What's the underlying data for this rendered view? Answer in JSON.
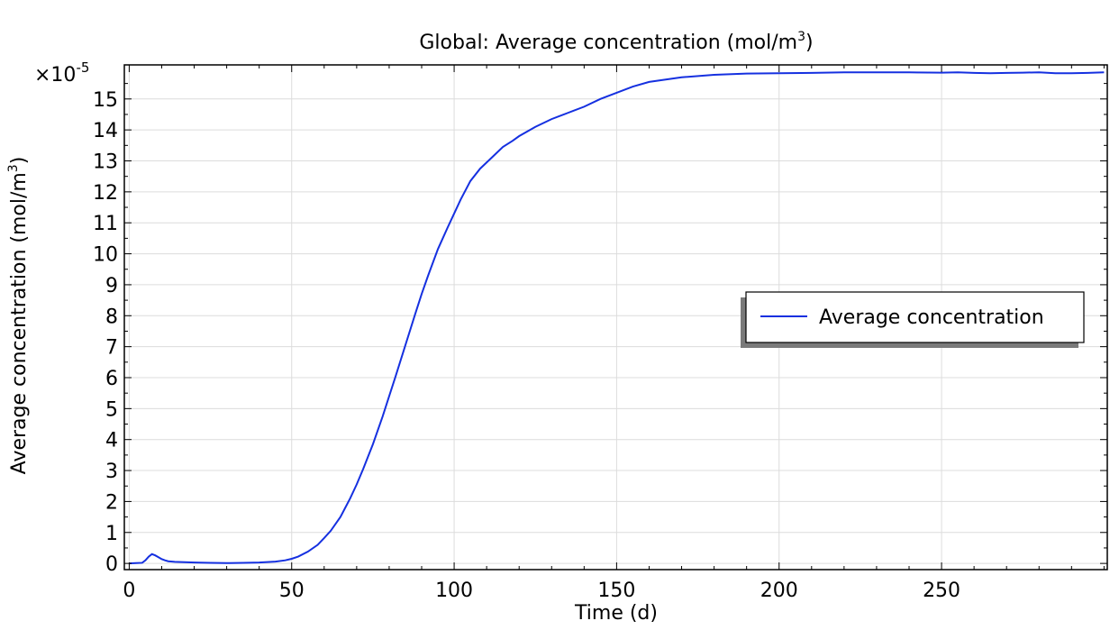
{
  "chart_data": {
    "type": "line",
    "title": "Global: Average concentration (mol/m",
    "title_sup": "3",
    "title_suffix": ")",
    "xlabel": "Time (d)",
    "ylabel": "Average concentration (mol/m",
    "ylabel_sup": "3",
    "ylabel_suffix": ")",
    "y_multiplier": "×10",
    "y_multiplier_exp": "-5",
    "xlim": [
      -1.5,
      301
    ],
    "ylim": [
      -0.2,
      16.1
    ],
    "x_ticks": [
      0,
      50,
      100,
      150,
      200,
      250
    ],
    "y_ticks": [
      0,
      1,
      2,
      3,
      4,
      5,
      6,
      7,
      8,
      9,
      10,
      11,
      12,
      13,
      14,
      15
    ],
    "grid": true,
    "legend": {
      "position": "right-center"
    },
    "series": [
      {
        "name": "Average concentration",
        "color": "#1530e0",
        "x": [
          0,
          2,
          4,
          5,
          6,
          7,
          8,
          9,
          10,
          11,
          12,
          14,
          17,
          20,
          25,
          30,
          35,
          40,
          45,
          48,
          50,
          52,
          55,
          58,
          60,
          62,
          65,
          68,
          70,
          72,
          75,
          78,
          80,
          82,
          85,
          88,
          90,
          92,
          95,
          98,
          100,
          102,
          105,
          108,
          110,
          112,
          115,
          118,
          120,
          125,
          130,
          135,
          140,
          145,
          150,
          155,
          160,
          170,
          180,
          190,
          200,
          210,
          220,
          230,
          240,
          250,
          255,
          260,
          265,
          270,
          275,
          280,
          285,
          290,
          295,
          300
        ],
        "values": [
          0,
          0.01,
          0.02,
          0.1,
          0.22,
          0.3,
          0.26,
          0.2,
          0.14,
          0.1,
          0.07,
          0.05,
          0.04,
          0.03,
          0.02,
          0.01,
          0.02,
          0.03,
          0.06,
          0.1,
          0.15,
          0.22,
          0.38,
          0.6,
          0.82,
          1.05,
          1.5,
          2.1,
          2.55,
          3.05,
          3.85,
          4.75,
          5.4,
          6.05,
          7.05,
          8.05,
          8.7,
          9.3,
          10.15,
          10.85,
          11.3,
          11.75,
          12.35,
          12.75,
          12.95,
          13.15,
          13.45,
          13.65,
          13.8,
          14.1,
          14.35,
          14.55,
          14.75,
          15.0,
          15.2,
          15.4,
          15.55,
          15.7,
          15.78,
          15.82,
          15.83,
          15.84,
          15.86,
          15.86,
          15.86,
          15.85,
          15.86,
          15.84,
          15.83,
          15.84,
          15.85,
          15.86,
          15.83,
          15.83,
          15.84,
          15.86
        ]
      }
    ]
  }
}
